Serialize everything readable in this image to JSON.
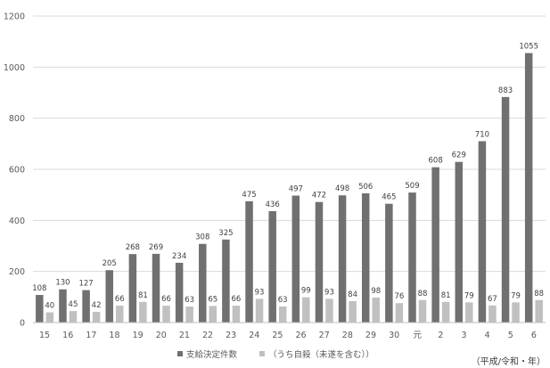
{
  "chart_data": {
    "type": "bar",
    "title": "",
    "xlabel": "",
    "ylabel": "",
    "ylim": [
      0,
      1200
    ],
    "yticks": [
      0,
      200,
      400,
      600,
      800,
      1000,
      1200
    ],
    "grid": true,
    "legend_position": "bottom",
    "categories": [
      "15",
      "16",
      "17",
      "18",
      "19",
      "20",
      "21",
      "22",
      "23",
      "24",
      "25",
      "26",
      "27",
      "28",
      "29",
      "30",
      "元",
      "2",
      "3",
      "4",
      "5",
      "6"
    ],
    "series": [
      {
        "name": "支給決定件数",
        "color": "#707070",
        "values": [
          108,
          130,
          127,
          205,
          268,
          269,
          234,
          308,
          325,
          475,
          436,
          497,
          472,
          498,
          506,
          465,
          509,
          608,
          629,
          710,
          883,
          1055
        ]
      },
      {
        "name": "（うち自殺（未遂を含む））",
        "color": "#c0c0c0",
        "values": [
          40,
          45,
          42,
          66,
          81,
          66,
          63,
          65,
          66,
          93,
          63,
          99,
          93,
          84,
          98,
          76,
          88,
          81,
          79,
          67,
          79,
          88
        ]
      }
    ],
    "unit_note": "（平成/令和・年）"
  }
}
